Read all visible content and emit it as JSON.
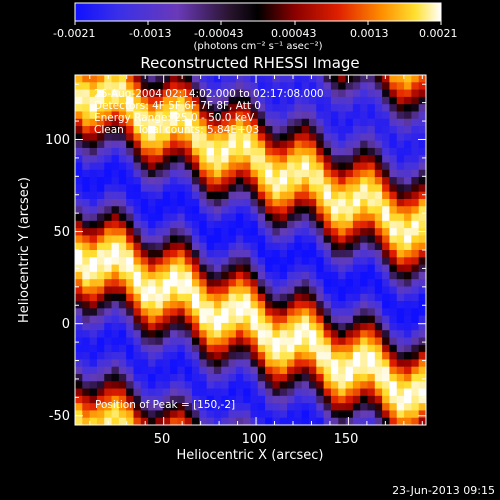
{
  "title": "Reconstructed RHESSI Image",
  "colorbar": {
    "ticks": [
      "-0.0021",
      "-0.0013",
      "-0.00043",
      "0.00043",
      "0.0013",
      "0.0021"
    ],
    "unit_label": "(photons cm⁻² s⁻¹ asec⁻²)",
    "range": [
      -0.0021,
      0.0021
    ]
  },
  "info": {
    "time_range": "26-Aug-2004 02:14:02.000 to 02:17:08.000",
    "detectors": "Detectors: 4F 5F 6F 7F 8F, Att 0",
    "energy": "Energy Range: 25.0 - 50.0 keV",
    "clean": "Clean    Total counts: 5.84E+03"
  },
  "peak_label": "Position of Peak = [150,-2]",
  "footer": "23-Jun-2013 09:15",
  "chart_data": {
    "type": "heatmap",
    "title": "Reconstructed RHESSI Image",
    "xlabel": "Heliocentric X (arcsec)",
    "ylabel": "Heliocentric Y (arcsec)",
    "xlim": [
      2,
      192
    ],
    "ylim": [
      -55,
      135
    ],
    "xticks": [
      50,
      100,
      150
    ],
    "yticks": [
      -50,
      0,
      50,
      100
    ],
    "peak": [
      150,
      -2
    ],
    "colormap": "RHESSI blue-black-red-yellow-white",
    "value_range": [
      -0.0021,
      0.0021
    ]
  }
}
